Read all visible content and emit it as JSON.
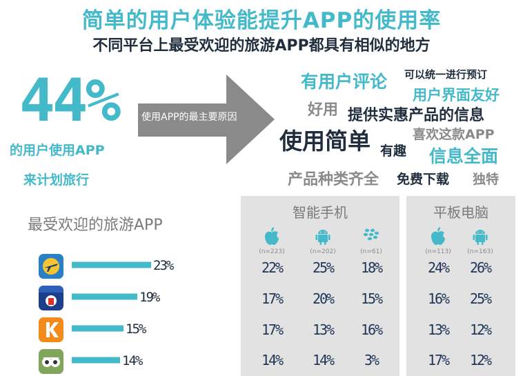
{
  "header": {
    "title": "简单的用户体验能提升APP的使用率",
    "subtitle": "不同平台上最受欢迎的旅游APP都具有相似的地方"
  },
  "stat": {
    "percent": "44%",
    "line1": "的用户使用APP",
    "line2": "来计划旅行"
  },
  "arrow_label": "使用APP的最主要原因",
  "word_cloud": [
    {
      "text": "有用户评论",
      "color": "#44b9c9"
    },
    {
      "text": "可以统一进行预订",
      "color": "#1f2d3d"
    },
    {
      "text": "用户界面友好",
      "color": "#44b9c9"
    },
    {
      "text": "好用",
      "color": "#8a8a8a"
    },
    {
      "text": "提供实惠产品的信息",
      "color": "#1f2d3d"
    },
    {
      "text": "使用简单",
      "color": "#1f2d3d"
    },
    {
      "text": "喜欢这款APP",
      "color": "#8a8a8a"
    },
    {
      "text": "有趣",
      "color": "#1f2d3d"
    },
    {
      "text": "信息全面",
      "color": "#44b9c9"
    },
    {
      "text": "产品种类齐全",
      "color": "#8a8a8a"
    },
    {
      "text": "免费下载",
      "color": "#1f2d3d"
    },
    {
      "text": "独特",
      "color": "#8a8a8a"
    }
  ],
  "platforms": {
    "smartphone": {
      "title": "智能手机",
      "columns": [
        {
          "icon": "apple-icon",
          "n": "(n=223)",
          "values": [
            "22%",
            "17%",
            "17%",
            "14%"
          ]
        },
        {
          "icon": "android-icon",
          "n": "(n=202)",
          "values": [
            "25%",
            "20%",
            "13%",
            "14%"
          ]
        },
        {
          "icon": "blackberry-icon",
          "n": "(n=61)",
          "values": [
            "18%",
            "15%",
            "16%",
            "3%"
          ]
        }
      ]
    },
    "tablet": {
      "title": "平板电脑",
      "columns": [
        {
          "icon": "apple-icon",
          "n": "(n=113)",
          "values": [
            "24%",
            "16%",
            "13%",
            "17%"
          ]
        },
        {
          "icon": "android-icon",
          "n": "(n=163)",
          "values": [
            "26%",
            "25%",
            "12%",
            "12%"
          ]
        }
      ]
    }
  },
  "chart_data": {
    "type": "bar",
    "title": "最受欢迎的旅游APP",
    "categories": [
      "expedia-icon",
      "hotel-app-icon",
      "kayak-icon",
      "tripadvisor-icon"
    ],
    "values": [
      23,
      19,
      15,
      14
    ],
    "value_labels": [
      "23%",
      "19%",
      "15%",
      "14%"
    ],
    "xlim": [
      0,
      25
    ],
    "bar_color": "#44b9c9",
    "grid": false
  }
}
